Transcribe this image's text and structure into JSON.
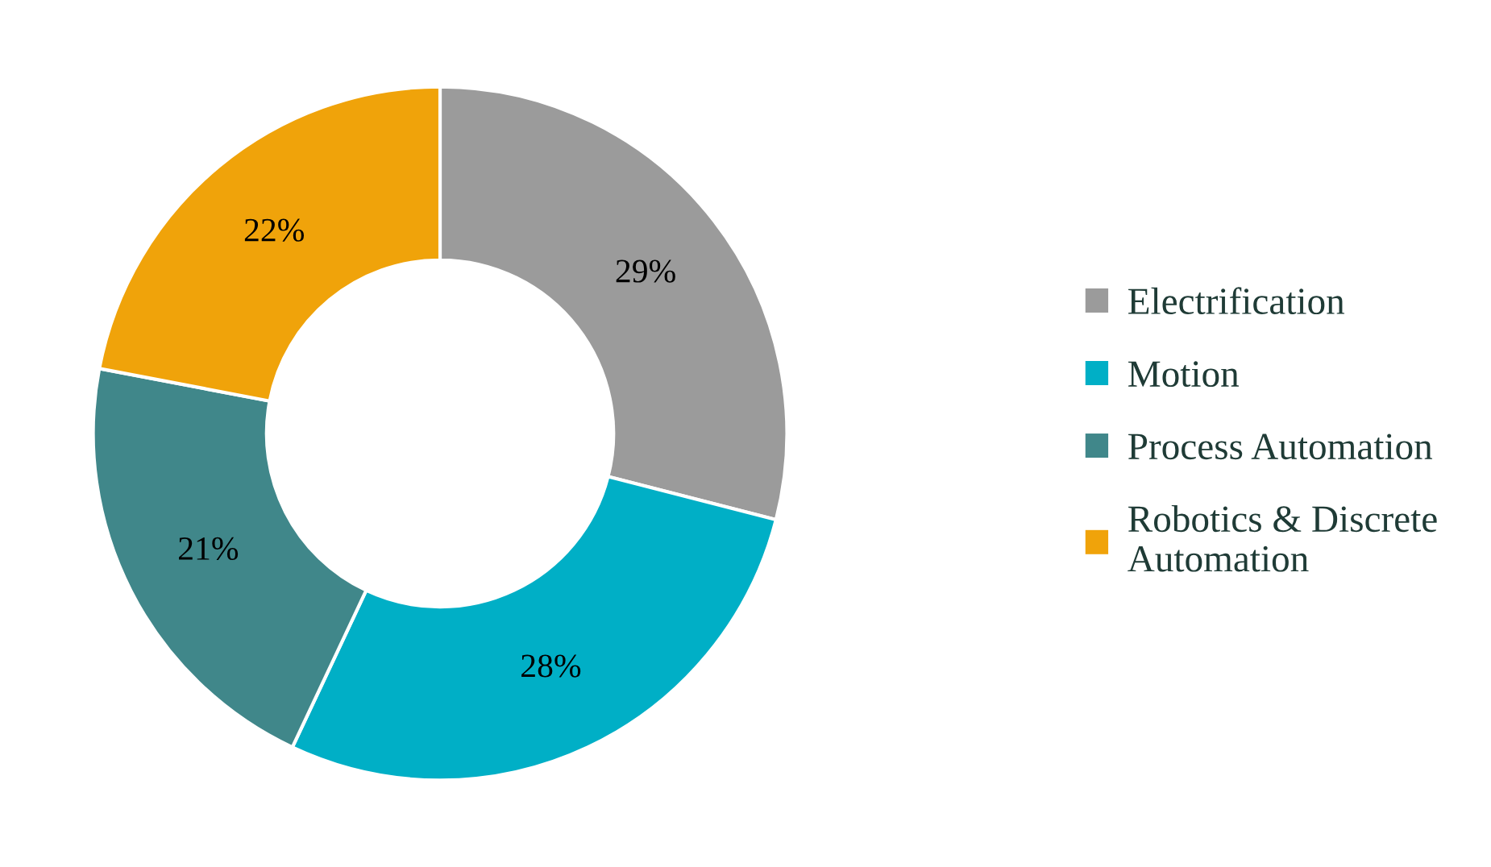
{
  "chart_data": {
    "type": "donut",
    "categories": [
      "Electrification",
      "Motion",
      "Process Automation",
      "Robotics & Discrete Automation"
    ],
    "values": [
      29,
      28,
      21,
      22
    ],
    "colors": [
      "#9b9b9b",
      "#00afc6",
      "#40878a",
      "#f0a30a"
    ],
    "value_labels": [
      "29%",
      "28%",
      "21%",
      "22%"
    ],
    "legend": "right"
  }
}
